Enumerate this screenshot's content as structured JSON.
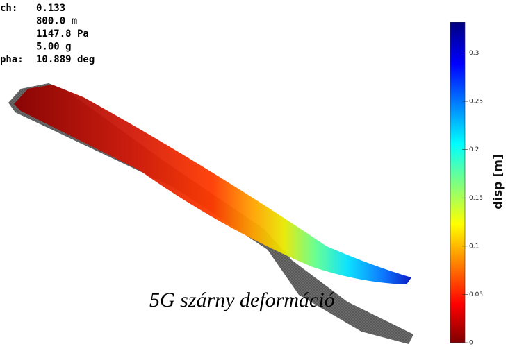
{
  "info": {
    "rows": [
      {
        "label": "ch:",
        "value": "0.133"
      },
      {
        "value": "800.0 m"
      },
      {
        "value": "1147.8 Pa"
      },
      {
        "value": "5.00 g"
      },
      {
        "label": "pha:",
        "value": "10.889 deg"
      }
    ]
  },
  "caption": "5G szárny deformáció",
  "colorbar": {
    "label": "disp [m]",
    "lim": [
      0,
      0.332
    ],
    "ticks": [
      0,
      0.05,
      0.1,
      0.15,
      0.2,
      0.25,
      0.3
    ]
  }
}
